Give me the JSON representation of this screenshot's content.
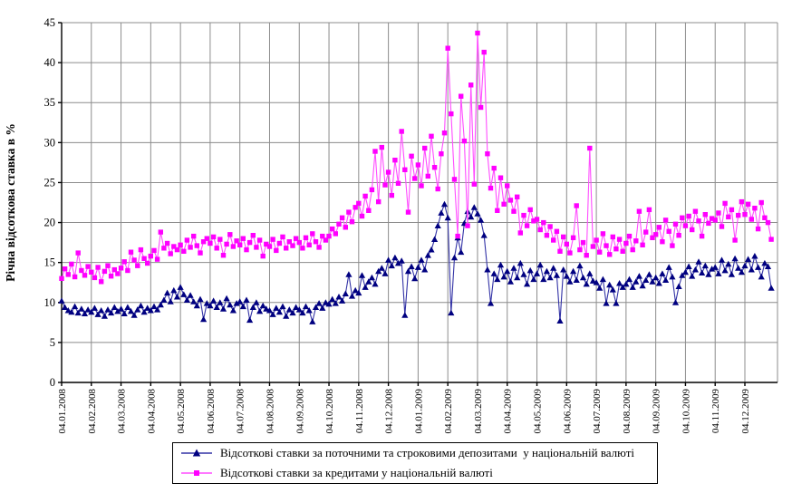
{
  "chart_data": {
    "type": "line",
    "title": "",
    "xlabel": "",
    "ylabel": "Річна відсоткова ставка в %",
    "ylim": [
      0,
      45
    ],
    "ytick_step": 5,
    "grid": true,
    "legend_position": "bottom",
    "y_tick_labels": [
      "0",
      "5",
      "10",
      "15",
      "20",
      "25",
      "30",
      "35",
      "40",
      "45"
    ],
    "x_tick_labels": [
      "04.01.2008",
      "04.02.2008",
      "04.03.2008",
      "04.04.2008",
      "04.05.2008",
      "04.06.2008",
      "04.07.2008",
      "04.08.2008",
      "04.09.2008",
      "04.10.2008",
      "04.11.2008",
      "04.12.2008",
      "04.01.2009",
      "04.02.2009",
      "04.03.2009",
      "04.04.2009",
      "04.05.2009",
      "04.06.2009",
      "04.07.2009",
      "04.08.2009",
      "04.09.2009",
      "04.10.2009",
      "04.11.2009",
      "04.12.2009"
    ],
    "points_per_month": 9,
    "series": [
      {
        "name": "Відсоткові ставки за поточними та строковими депозитами  у національній валюті",
        "marker": "triangle",
        "marker_color": "#000080",
        "line_color": "#3333a6",
        "values": [
          10.2,
          9.4,
          9.0,
          8.8,
          9.5,
          8.7,
          9.2,
          8.6,
          9.1,
          8.8,
          9.3,
          8.5,
          9.0,
          8.3,
          9.1,
          8.7,
          9.4,
          8.9,
          9.2,
          8.6,
          9.4,
          8.9,
          8.4,
          9.1,
          9.6,
          8.8,
          9.3,
          9.0,
          9.5,
          9.1,
          9.7,
          10.3,
          11.2,
          10.1,
          11.5,
          10.7,
          11.9,
          11.0,
          10.3,
          10.9,
          10.1,
          9.6,
          10.4,
          7.9,
          9.9,
          9.6,
          10.2,
          9.4,
          10.0,
          9.2,
          10.5,
          9.7,
          9.0,
          9.9,
          10.1,
          9.5,
          10.3,
          7.8,
          9.4,
          10.0,
          8.9,
          9.6,
          9.2,
          9.0,
          8.5,
          9.3,
          8.8,
          9.5,
          8.3,
          9.1,
          8.7,
          9.4,
          9.1,
          8.7,
          9.5,
          9.0,
          7.6,
          9.4,
          9.9,
          9.3,
          10.0,
          9.8,
          10.4,
          9.9,
          10.7,
          10.2,
          11.1,
          13.5,
          10.8,
          11.5,
          11.2,
          13.4,
          11.9,
          12.6,
          13.1,
          12.3,
          13.9,
          14.3,
          13.6,
          15.3,
          14.6,
          15.6,
          14.9,
          15.2,
          8.4,
          13.9,
          14.5,
          13.0,
          14.4,
          15.3,
          14.1,
          15.9,
          16.6,
          17.9,
          19.6,
          21.2,
          22.3,
          20.6,
          8.7,
          15.6,
          18.1,
          16.3,
          19.9,
          21.4,
          20.7,
          21.9,
          21.1,
          20.3,
          18.4,
          14.1,
          9.9,
          13.6,
          12.9,
          14.7,
          13.2,
          13.9,
          12.6,
          14.3,
          13.1,
          14.9,
          13.5,
          12.3,
          14.0,
          12.9,
          13.6,
          14.7,
          12.9,
          13.9,
          13.1,
          14.3,
          13.4,
          7.7,
          14.1,
          13.3,
          12.6,
          13.9,
          12.8,
          14.6,
          13.1,
          12.3,
          13.6,
          12.7,
          12.5,
          11.8,
          12.9,
          9.9,
          12.2,
          11.6,
          9.9,
          12.4,
          11.9,
          12.3,
          12.9,
          11.9,
          12.6,
          13.3,
          12.1,
          12.8,
          13.5,
          12.6,
          13.1,
          12.4,
          13.6,
          12.8,
          14.4,
          13.2,
          10.0,
          12.0,
          13.4,
          13.8,
          14.5,
          13.3,
          14.1,
          15.1,
          13.7,
          14.6,
          13.5,
          14.2,
          14.4,
          13.6,
          15.3,
          14.0,
          14.8,
          13.5,
          15.5,
          14.3,
          13.8,
          14.6,
          15.4,
          14.1,
          15.8,
          14.4,
          13.2,
          14.9,
          14.5,
          11.8
        ]
      },
      {
        "name": "Відсоткові ставки за кредитами у національній валюті",
        "marker": "square",
        "marker_color": "#ff00ff",
        "line_color": "#ff4dff",
        "values": [
          13.0,
          14.2,
          13.5,
          14.8,
          13.2,
          16.2,
          14.0,
          13.4,
          14.5,
          13.8,
          13.1,
          14.4,
          12.6,
          13.9,
          14.6,
          13.3,
          14.1,
          13.6,
          14.3,
          15.1,
          14.0,
          16.3,
          15.3,
          14.6,
          16.6,
          15.5,
          14.9,
          15.8,
          16.5,
          15.4,
          18.8,
          16.8,
          17.4,
          16.1,
          17.0,
          16.6,
          17.2,
          16.4,
          17.8,
          16.9,
          18.3,
          17.1,
          16.2,
          17.6,
          18.0,
          17.4,
          18.2,
          16.8,
          17.9,
          15.9,
          17.3,
          18.5,
          17.0,
          17.7,
          17.2,
          18.0,
          16.6,
          17.5,
          18.4,
          16.9,
          17.8,
          15.8,
          17.3,
          17.0,
          17.9,
          16.5,
          17.4,
          18.2,
          16.8,
          17.6,
          17.1,
          18.0,
          17.5,
          16.8,
          18.1,
          17.2,
          18.6,
          17.6,
          16.9,
          18.3,
          17.8,
          18.3,
          19.2,
          18.6,
          19.8,
          20.6,
          19.4,
          21.3,
          20.1,
          21.9,
          22.4,
          20.8,
          23.3,
          21.5,
          24.1,
          28.9,
          22.6,
          29.4,
          24.7,
          26.3,
          23.4,
          27.8,
          24.9,
          31.4,
          26.6,
          21.3,
          28.3,
          25.5,
          27.2,
          24.6,
          29.3,
          25.8,
          30.8,
          26.9,
          24.2,
          28.6,
          31.2,
          41.8,
          33.6,
          25.4,
          18.3,
          35.8,
          30.2,
          19.6,
          37.2,
          24.8,
          43.7,
          34.4,
          41.3,
          28.6,
          24.3,
          26.8,
          21.5,
          25.6,
          22.3,
          24.6,
          22.8,
          21.4,
          23.2,
          18.7,
          20.9,
          19.6,
          21.6,
          20.2,
          20.4,
          19.1,
          20.0,
          18.4,
          19.5,
          17.8,
          18.9,
          16.4,
          18.2,
          17.3,
          16.2,
          18.1,
          22.1,
          16.6,
          17.5,
          15.9,
          29.3,
          17.0,
          17.8,
          16.3,
          18.6,
          17.1,
          16.0,
          18.2,
          16.7,
          17.9,
          16.4,
          17.4,
          18.3,
          16.6,
          17.7,
          21.4,
          17.2,
          18.8,
          21.6,
          18.1,
          18.5,
          19.4,
          17.6,
          20.3,
          18.9,
          17.1,
          19.8,
          18.4,
          20.6,
          19.6,
          20.8,
          19.1,
          21.4,
          20.2,
          18.3,
          21.0,
          19.9,
          20.5,
          20.3,
          21.2,
          19.5,
          22.4,
          20.7,
          21.6,
          17.8,
          20.9,
          22.6,
          21.0,
          22.3,
          20.4,
          21.8,
          19.2,
          22.5,
          20.6,
          20.0,
          17.9
        ]
      }
    ],
    "colors": {
      "grid": "#8c8c8c",
      "axis": "#000000",
      "background": "#ffffff"
    }
  }
}
